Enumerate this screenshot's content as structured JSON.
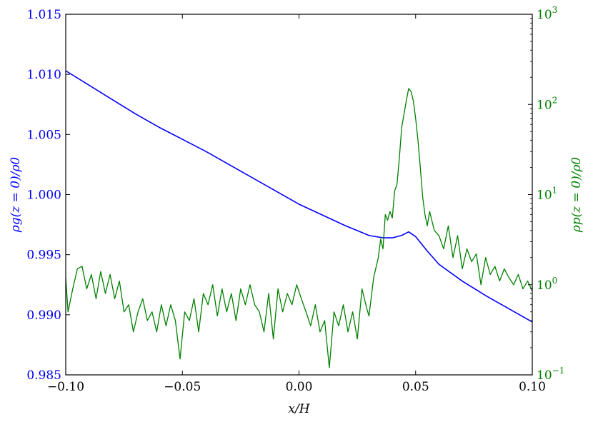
{
  "chart_data": {
    "type": "line",
    "xlabel": "x/H",
    "ylabel_left": "ρg(z = 0)/ρ0",
    "ylabel_right": "ρp(z = 0)/ρ0",
    "xlim": [
      -0.1,
      0.1
    ],
    "ylim_left": [
      0.985,
      1.015
    ],
    "ylim_right_log10": [
      -1,
      3
    ],
    "right_axis_scale": "log",
    "grid": false,
    "legend": "none",
    "x_ticks": [
      -0.1,
      -0.05,
      0.0,
      0.05,
      0.1
    ],
    "x_tick_labels": [
      "−0.10",
      "−0.05",
      "0.00",
      "0.05",
      "0.10"
    ],
    "left_ticks": [
      0.985,
      0.99,
      0.995,
      1.0,
      1.005,
      1.01,
      1.015
    ],
    "left_tick_labels": [
      "0.985",
      "0.990",
      "0.995",
      "1.000",
      "1.005",
      "1.010",
      "1.015"
    ],
    "right_ticks_log10": [
      -1,
      0,
      1,
      2,
      3
    ],
    "right_tick_labels": [
      "10",
      "10",
      "10",
      "10",
      "10"
    ],
    "right_tick_exponents": [
      "−1",
      "0",
      "1",
      "2",
      "3"
    ],
    "colors": {
      "gas": "#0000ff",
      "particles": "#008000",
      "axes": "#000000"
    },
    "series": [
      {
        "axis": "left",
        "x": [
          -0.1,
          -0.09,
          -0.08,
          -0.07,
          -0.06,
          -0.05,
          -0.04,
          -0.03,
          -0.02,
          -0.01,
          0.0,
          0.01,
          0.02,
          0.03,
          0.036,
          0.04,
          0.044,
          0.047,
          0.05,
          0.055,
          0.06,
          0.07,
          0.08,
          0.09,
          0.1
        ],
        "y": [
          1.0103,
          1.0091,
          1.0079,
          1.0067,
          1.0056,
          1.0046,
          1.0036,
          1.0025,
          1.0014,
          1.0003,
          0.9992,
          0.9983,
          0.9974,
          0.9966,
          0.9964,
          0.9964,
          0.9966,
          0.9969,
          0.9965,
          0.9953,
          0.9942,
          0.9928,
          0.9916,
          0.9905,
          0.9894
        ]
      },
      {
        "axis": "right",
        "x": [
          -0.1,
          -0.099,
          -0.097,
          -0.095,
          -0.093,
          -0.091,
          -0.089,
          -0.087,
          -0.085,
          -0.083,
          -0.081,
          -0.079,
          -0.077,
          -0.075,
          -0.073,
          -0.071,
          -0.069,
          -0.067,
          -0.065,
          -0.063,
          -0.061,
          -0.059,
          -0.057,
          -0.055,
          -0.053,
          -0.051,
          -0.049,
          -0.047,
          -0.045,
          -0.043,
          -0.041,
          -0.039,
          -0.037,
          -0.035,
          -0.033,
          -0.031,
          -0.029,
          -0.027,
          -0.025,
          -0.023,
          -0.021,
          -0.019,
          -0.017,
          -0.015,
          -0.013,
          -0.011,
          -0.009,
          -0.007,
          -0.005,
          -0.003,
          -0.001,
          0.001,
          0.003,
          0.005,
          0.007,
          0.009,
          0.011,
          0.013,
          0.015,
          0.017,
          0.019,
          0.021,
          0.023,
          0.025,
          0.027,
          0.029,
          0.03,
          0.032,
          0.034,
          0.035,
          0.036,
          0.037,
          0.038,
          0.039,
          0.04,
          0.041,
          0.042,
          0.043,
          0.044,
          0.045,
          0.046,
          0.047,
          0.048,
          0.049,
          0.05,
          0.051,
          0.052,
          0.053,
          0.054,
          0.055,
          0.056,
          0.058,
          0.06,
          0.062,
          0.064,
          0.066,
          0.068,
          0.07,
          0.072,
          0.074,
          0.076,
          0.078,
          0.08,
          0.082,
          0.084,
          0.086,
          0.088,
          0.09,
          0.092,
          0.094,
          0.096,
          0.098,
          0.1
        ],
        "y": [
          1.2,
          0.5,
          0.9,
          1.5,
          1.6,
          0.9,
          1.3,
          0.7,
          1.4,
          0.8,
          1.3,
          0.7,
          1.1,
          0.5,
          0.6,
          0.3,
          0.5,
          0.7,
          0.4,
          0.5,
          0.3,
          0.6,
          0.35,
          0.6,
          0.4,
          0.15,
          0.5,
          0.4,
          0.7,
          0.3,
          0.8,
          0.6,
          1.0,
          0.45,
          0.9,
          0.5,
          0.8,
          0.4,
          0.9,
          0.6,
          1.0,
          0.6,
          0.5,
          0.3,
          0.8,
          0.25,
          0.9,
          0.5,
          0.8,
          0.6,
          1.0,
          0.7,
          0.5,
          0.35,
          0.6,
          0.3,
          0.4,
          0.12,
          0.5,
          0.35,
          0.6,
          0.3,
          0.5,
          0.25,
          0.9,
          0.55,
          0.45,
          1.2,
          2.0,
          3.2,
          2.5,
          6.0,
          5.2,
          6.5,
          5.5,
          11.0,
          13.0,
          25.0,
          55.0,
          78.0,
          110.0,
          150.0,
          140.0,
          110.0,
          70.0,
          40.0,
          20.0,
          9.5,
          6.0,
          4.5,
          6.5,
          4.0,
          3.5,
          2.5,
          4.5,
          2.0,
          3.5,
          1.5,
          2.5,
          1.8,
          2.2,
          1.0,
          2.0,
          1.3,
          1.6,
          1.1,
          1.5,
          1.2,
          1.0,
          1.3,
          0.9,
          1.1,
          0.85
        ]
      }
    ]
  }
}
